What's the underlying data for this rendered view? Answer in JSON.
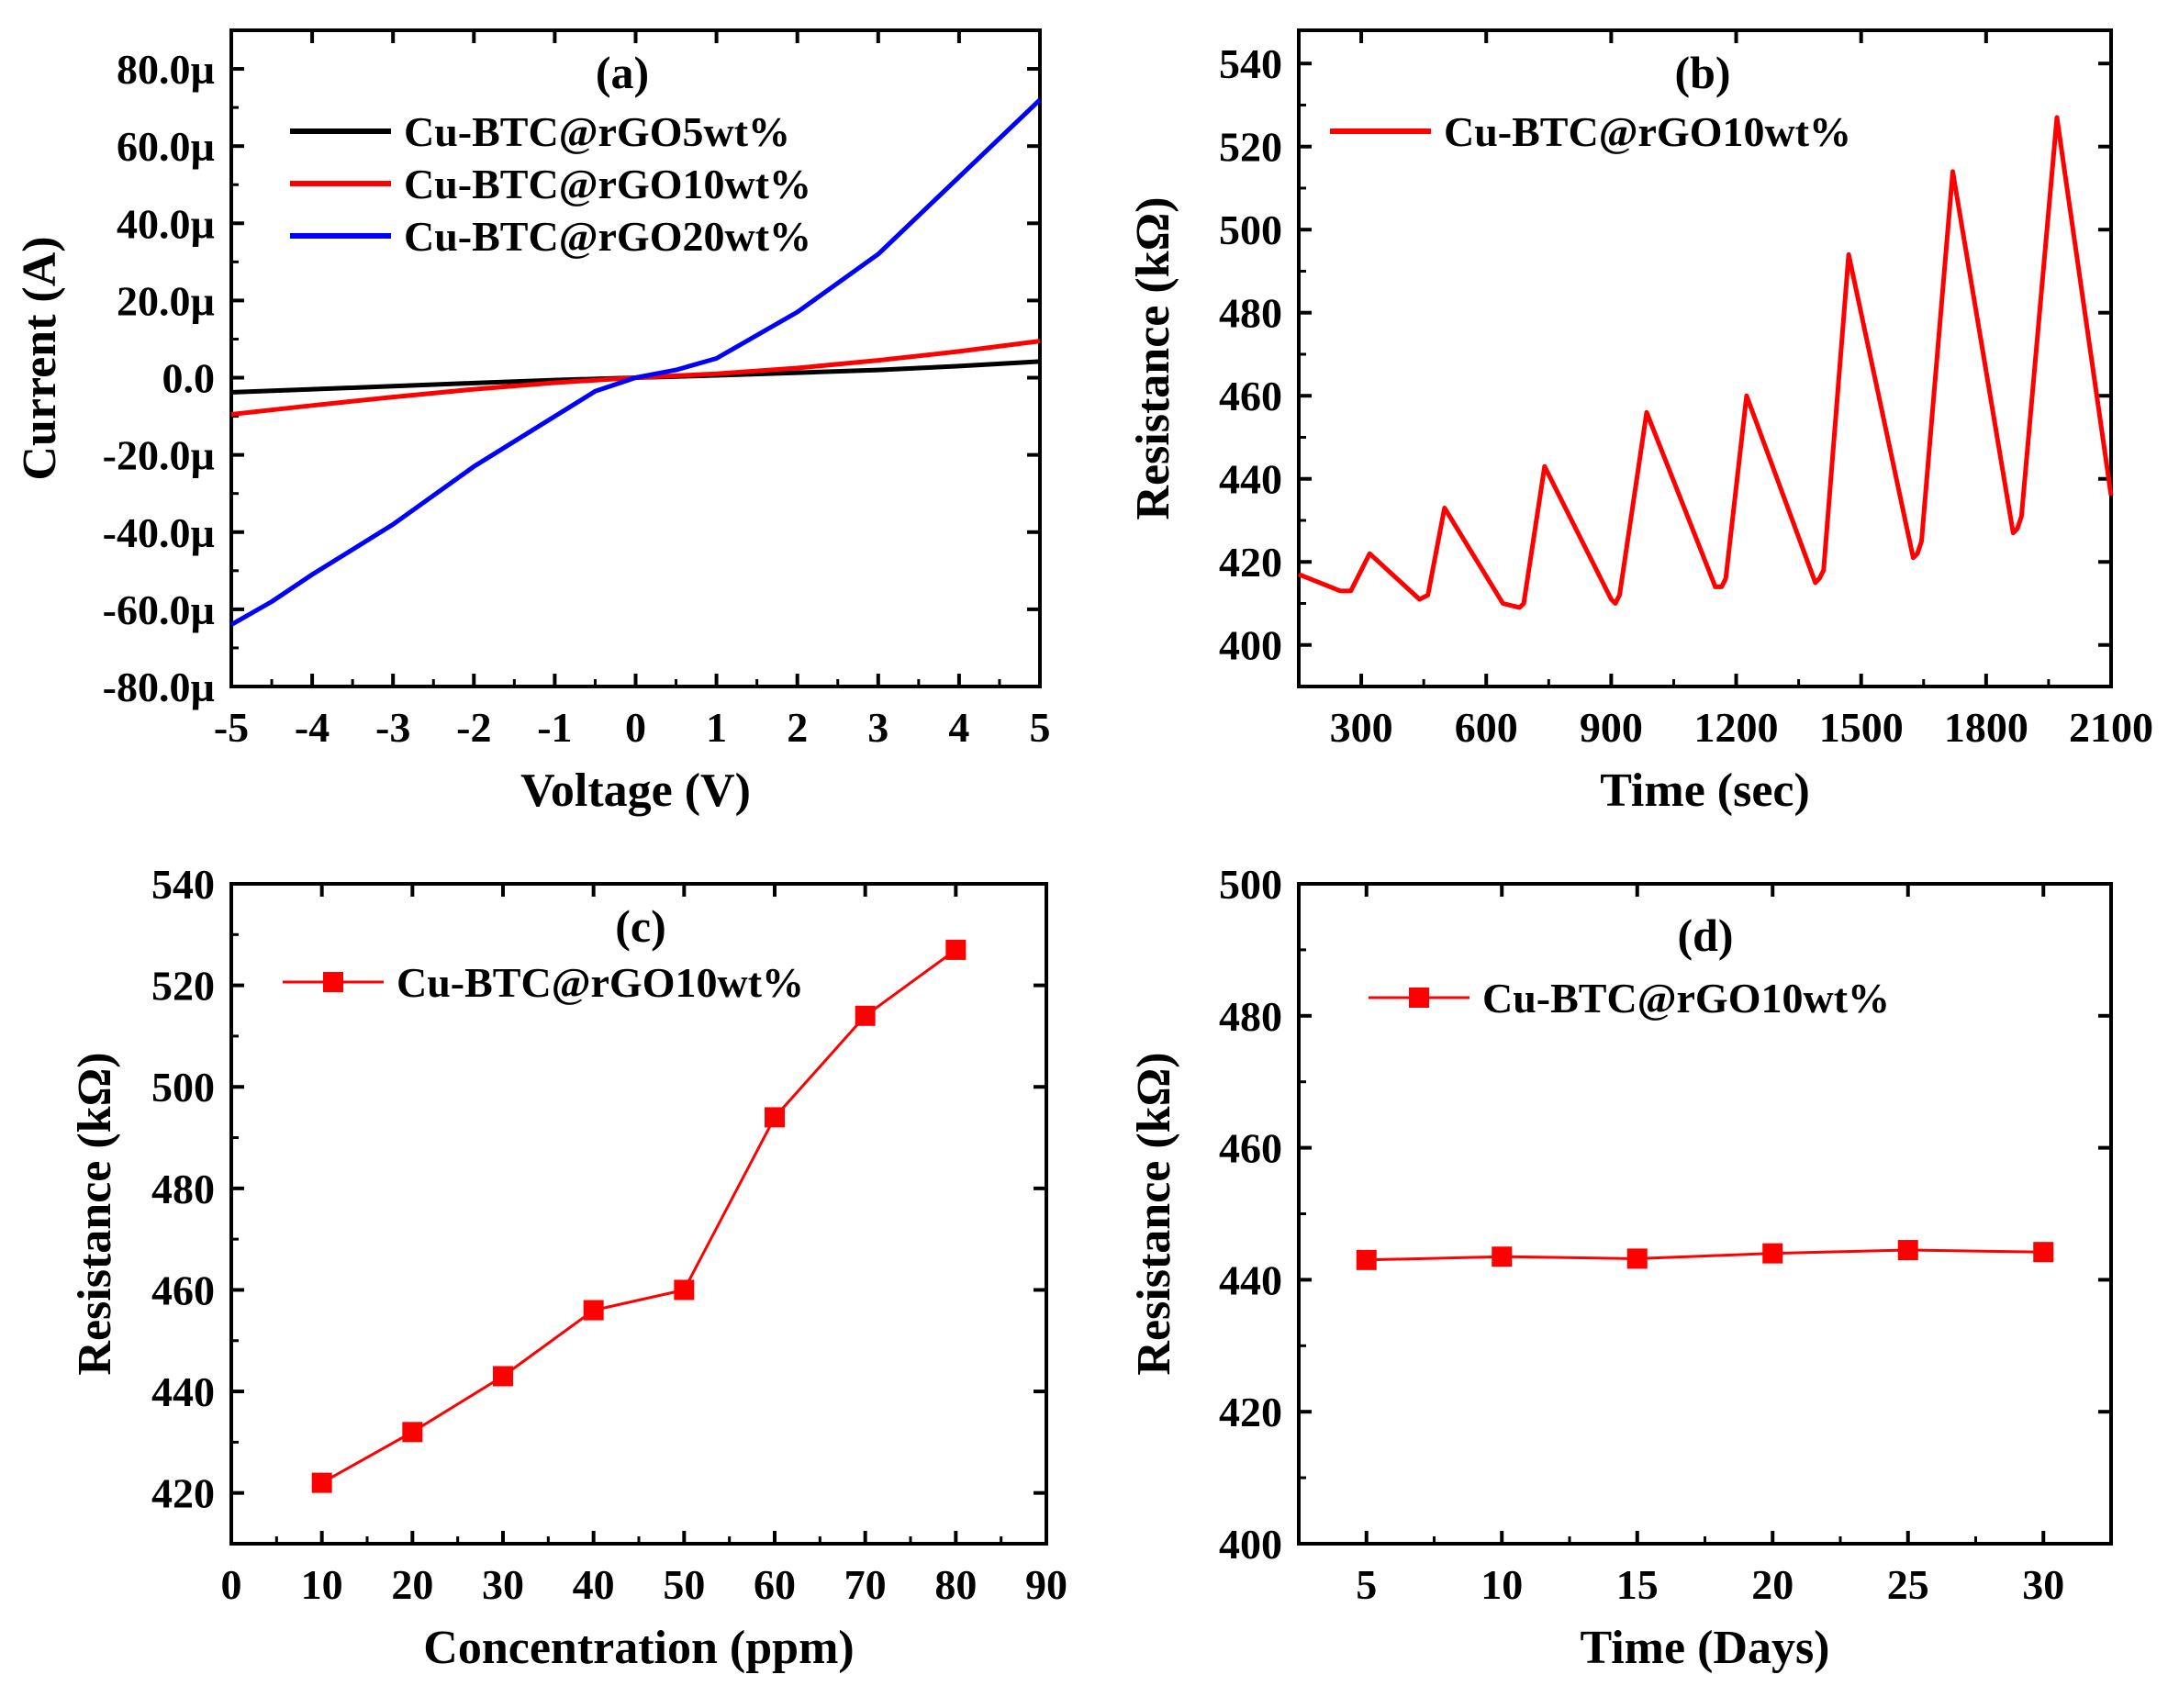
{
  "chart_data": [
    {
      "panel_label": "(a)",
      "type": "line",
      "xlabel": "Voltage (V)",
      "ylabel": "Current (A)",
      "xlim": [
        -5,
        5
      ],
      "ylim": [
        -80,
        90
      ],
      "x_ticks": [
        -5,
        -4,
        -3,
        -2,
        -1,
        0,
        1,
        2,
        3,
        4,
        5
      ],
      "x_tick_labels": [
        "-5",
        "-4",
        "-3",
        "-2",
        "-1",
        "0",
        "1",
        "2",
        "3",
        "4",
        "5"
      ],
      "y_ticks": [
        -80,
        -60,
        -40,
        -20,
        0,
        20,
        40,
        60,
        80
      ],
      "y_tick_labels": [
        "-80.0µ",
        "-60.0µ",
        "-40.0µ",
        "-20.0µ",
        "0.0",
        "20.0µ",
        "40.0µ",
        "60.0µ",
        "80.0µ"
      ],
      "legend_position": "top-left",
      "series": [
        {
          "name": "Cu-BTC@rGO5wt%",
          "color": "#000000",
          "x": [
            -5,
            -4,
            -3,
            -2,
            -1,
            0,
            1,
            2,
            3,
            4,
            5
          ],
          "y": [
            -3.8,
            -3.0,
            -2.2,
            -1.4,
            -0.6,
            0,
            0.6,
            1.3,
            2.0,
            3.0,
            4.2
          ]
        },
        {
          "name": "Cu-BTC@rGO10wt%",
          "color": "#ff0000",
          "x": [
            -5,
            -4,
            -3,
            -2,
            -1,
            0,
            1,
            2,
            3,
            4,
            5
          ],
          "y": [
            -9.5,
            -7.2,
            -5.0,
            -3.0,
            -1.3,
            0,
            1.0,
            2.5,
            4.5,
            6.8,
            9.5
          ]
        },
        {
          "name": "Cu-BTC@rGO20wt%",
          "color": "#0000ff",
          "x": [
            -5,
            -4.5,
            -4,
            -3,
            -2,
            -1,
            -0.5,
            0,
            0.5,
            1,
            2,
            3,
            4,
            4.5,
            5
          ],
          "y": [
            -64,
            -58,
            -51,
            -38,
            -23,
            -10,
            -3.5,
            0,
            2,
            5,
            17,
            32,
            52,
            62,
            72
          ]
        }
      ]
    },
    {
      "panel_label": "(b)",
      "type": "line",
      "xlabel": "Time (sec)",
      "ylabel": "Resistance (kΩ)",
      "xlim": [
        150,
        2100
      ],
      "ylim": [
        390,
        548
      ],
      "x_ticks": [
        300,
        600,
        900,
        1200,
        1500,
        1800,
        2100
      ],
      "x_tick_labels": [
        "300",
        "600",
        "900",
        "1200",
        "1500",
        "1800",
        "2100"
      ],
      "y_ticks": [
        400,
        420,
        440,
        460,
        480,
        500,
        520,
        540
      ],
      "y_tick_labels": [
        "400",
        "420",
        "440",
        "460",
        "480",
        "500",
        "520",
        "540"
      ],
      "legend_position": "top-left",
      "series": [
        {
          "name": "Cu-BTC@rGO10wt%",
          "color": "#ff0000",
          "x": [
            150,
            250,
            275,
            320,
            440,
            460,
            500,
            640,
            680,
            690,
            740,
            900,
            910,
            920,
            985,
            1150,
            1165,
            1175,
            1225,
            1390,
            1400,
            1410,
            1470,
            1625,
            1635,
            1645,
            1720,
            1865,
            1875,
            1885,
            1970,
            2100
          ],
          "y": [
            417,
            413,
            413,
            422,
            411,
            412,
            433,
            410,
            409,
            410,
            443,
            411,
            410,
            412,
            456,
            414,
            414,
            416,
            460,
            415,
            416,
            418,
            494,
            421,
            422,
            425,
            514,
            427,
            428,
            431,
            527,
            436
          ]
        }
      ]
    },
    {
      "panel_label": "(c)",
      "type": "line",
      "xlabel": "Concentration (ppm)",
      "ylabel": "Resistance (kΩ)",
      "xlim": [
        0,
        90
      ],
      "ylim": [
        410,
        540
      ],
      "x_ticks": [
        0,
        10,
        20,
        30,
        40,
        50,
        60,
        70,
        80,
        90
      ],
      "x_tick_labels": [
        "0",
        "10",
        "20",
        "30",
        "40",
        "50",
        "60",
        "70",
        "80",
        "90"
      ],
      "y_ticks": [
        420,
        440,
        460,
        480,
        500,
        520,
        540
      ],
      "y_tick_labels": [
        "420",
        "440",
        "460",
        "480",
        "500",
        "520",
        "540"
      ],
      "legend_position": "top-left",
      "series": [
        {
          "name": "Cu-BTC@rGO10wt%",
          "color": "#ff0000",
          "x": [
            10,
            20,
            30,
            40,
            50,
            60,
            70,
            80
          ],
          "y": [
            422,
            432,
            443,
            456,
            460,
            494,
            514,
            527
          ]
        }
      ]
    },
    {
      "panel_label": "(d)",
      "type": "line",
      "xlabel": "Time (Days)",
      "ylabel": "Resistance (kΩ)",
      "xlim": [
        2.5,
        32.5
      ],
      "ylim": [
        400,
        500
      ],
      "x_ticks": [
        5,
        10,
        15,
        20,
        25,
        30
      ],
      "x_tick_labels": [
        "5",
        "10",
        "15",
        "20",
        "25",
        "30"
      ],
      "y_ticks": [
        400,
        420,
        440,
        460,
        480,
        500
      ],
      "y_tick_labels": [
        "400",
        "420",
        "440",
        "460",
        "480",
        "500"
      ],
      "legend_position": "top-left",
      "series": [
        {
          "name": "Cu-BTC@rGO10wt%",
          "color": "#ff0000",
          "x": [
            5,
            10,
            15,
            20,
            25,
            30
          ],
          "y": [
            443,
            443.5,
            443.2,
            444,
            444.5,
            444.2
          ]
        }
      ]
    }
  ]
}
